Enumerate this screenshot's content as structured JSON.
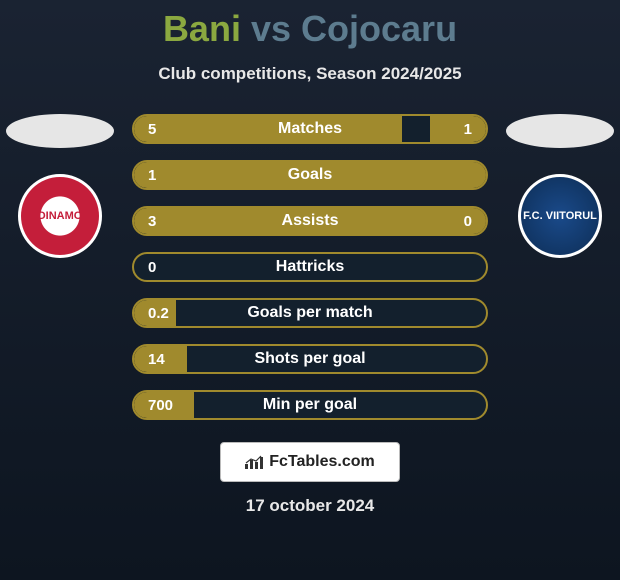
{
  "header": {
    "player1": "Bani",
    "vs": "vs",
    "player2": "Cojocaru",
    "subtitle": "Club competitions, Season 2024/2025",
    "p1_color": "#8ba840",
    "p2_color": "#5d7c8f"
  },
  "clubs": {
    "left": {
      "label": "DINAMO",
      "bg": "#c41e3a",
      "text_color": "#c41e3a"
    },
    "right": {
      "label": "F.C. VIITORUL",
      "bg": "#1a4a8a",
      "text_color": "#ffffff"
    }
  },
  "stats": {
    "bar_border": "#a08a2d",
    "bar_fill": "#a08a2d",
    "bar_bg": "#13202d",
    "rows": [
      {
        "label": "Matches",
        "left_val": "5",
        "right_val": "1",
        "left_pct": 76,
        "right_pct": 16
      },
      {
        "label": "Goals",
        "left_val": "1",
        "right_val": "",
        "left_pct": 100,
        "right_pct": 0
      },
      {
        "label": "Assists",
        "left_val": "3",
        "right_val": "0",
        "left_pct": 100,
        "right_pct": 0
      },
      {
        "label": "Hattricks",
        "left_val": "0",
        "right_val": "",
        "left_pct": 0,
        "right_pct": 0
      },
      {
        "label": "Goals per match",
        "left_val": "0.2",
        "right_val": "",
        "left_pct": 12,
        "right_pct": 0
      },
      {
        "label": "Shots per goal",
        "left_val": "14",
        "right_val": "",
        "left_pct": 15,
        "right_pct": 0
      },
      {
        "label": "Min per goal",
        "left_val": "700",
        "right_val": "",
        "left_pct": 17,
        "right_pct": 0
      }
    ]
  },
  "brand": {
    "text": "FcTables.com"
  },
  "date": "17 october 2024",
  "colors": {
    "page_bg_top": "#1a2332",
    "page_bg_bottom": "#0d1520",
    "silhouette": "#e6e6e6"
  }
}
